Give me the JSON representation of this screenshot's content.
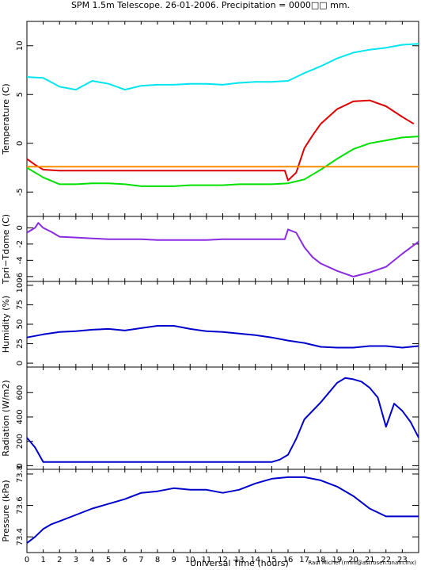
{
  "title": "SPM 1.5m Telescope. 26-01-2006. Precipitation = 0000□□ mm.",
  "credit": "Raul Michel (rmm@astrosen.unam.mx)",
  "colors": {
    "cyan": "#00e5ee",
    "red": "#dd0000",
    "green": "#00e000",
    "orange": "#ff8c00",
    "purple": "#8a2be2",
    "blue": "#0000cc"
  },
  "chart_data": {
    "type": "line",
    "xlabel": "Universal Time (hours)",
    "xlim": [
      0,
      24
    ],
    "xticks": [
      "0",
      "1",
      "2",
      "3",
      "4",
      "5",
      "6",
      "7",
      "8",
      "9",
      "10",
      "11",
      "12",
      "13",
      "14",
      "15",
      "16",
      "17",
      "18",
      "19",
      "20",
      "21",
      "22",
      "23"
    ],
    "panels": [
      {
        "name": "temperature",
        "ylabel": "Temperature (C)",
        "ylim": [
          -7.5,
          12.5
        ],
        "yticks": [
          -5,
          0,
          5,
          10
        ],
        "series": [
          {
            "color": "cyan",
            "points": [
              [
                0,
                6.8
              ],
              [
                1,
                6.7
              ],
              [
                2,
                5.8
              ],
              [
                3,
                5.5
              ],
              [
                4,
                6.4
              ],
              [
                5,
                6.1
              ],
              [
                6,
                5.5
              ],
              [
                7,
                5.9
              ],
              [
                8,
                6.0
              ],
              [
                9,
                6.0
              ],
              [
                10,
                6.1
              ],
              [
                11,
                6.1
              ],
              [
                12,
                6.0
              ],
              [
                13,
                6.2
              ],
              [
                14,
                6.3
              ],
              [
                15,
                6.3
              ],
              [
                16,
                6.4
              ],
              [
                17,
                7.2
              ],
              [
                18,
                7.9
              ],
              [
                19,
                8.7
              ],
              [
                20,
                9.3
              ],
              [
                21,
                9.6
              ],
              [
                22,
                9.8
              ],
              [
                23,
                10.1
              ],
              [
                24,
                10.2
              ]
            ]
          },
          {
            "color": "red",
            "points": [
              [
                0,
                -1.6
              ],
              [
                0.5,
                -2.2
              ],
              [
                1,
                -2.7
              ],
              [
                2,
                -2.8
              ],
              [
                4,
                -2.8
              ],
              [
                6,
                -2.8
              ],
              [
                8,
                -2.8
              ],
              [
                10,
                -2.8
              ],
              [
                12,
                -2.8
              ],
              [
                14,
                -2.8
              ],
              [
                15.8,
                -2.8
              ],
              [
                16,
                -3.8
              ],
              [
                16.5,
                -3.0
              ],
              [
                17,
                -0.5
              ],
              [
                17.5,
                0.8
              ],
              [
                18,
                2.0
              ],
              [
                19,
                3.5
              ],
              [
                20,
                4.3
              ],
              [
                21,
                4.4
              ],
              [
                22,
                3.8
              ],
              [
                23,
                2.7
              ],
              [
                23.7,
                2.0
              ]
            ]
          },
          {
            "color": "green",
            "points": [
              [
                0,
                -2.5
              ],
              [
                1,
                -3.5
              ],
              [
                2,
                -4.2
              ],
              [
                3,
                -4.2
              ],
              [
                4,
                -4.1
              ],
              [
                5,
                -4.1
              ],
              [
                6,
                -4.2
              ],
              [
                7,
                -4.4
              ],
              [
                8,
                -4.4
              ],
              [
                9,
                -4.4
              ],
              [
                10,
                -4.3
              ],
              [
                11,
                -4.3
              ],
              [
                12,
                -4.3
              ],
              [
                13,
                -4.2
              ],
              [
                14,
                -4.2
              ],
              [
                15,
                -4.2
              ],
              [
                16,
                -4.1
              ],
              [
                17,
                -3.7
              ],
              [
                18,
                -2.7
              ],
              [
                19,
                -1.6
              ],
              [
                20,
                -0.6
              ],
              [
                21,
                0.0
              ],
              [
                22,
                0.3
              ],
              [
                23,
                0.6
              ],
              [
                24,
                0.7
              ]
            ]
          },
          {
            "color": "orange",
            "points": [
              [
                0,
                -2.4
              ],
              [
                24,
                -2.4
              ]
            ]
          }
        ]
      },
      {
        "name": "tpri-tdome",
        "ylabel": "Tpri−Tdome (C)",
        "ylim": [
          -6.6,
          1.4
        ],
        "yticks": [
          -6,
          -4,
          -2,
          0
        ],
        "series": [
          {
            "color": "purple",
            "points": [
              [
                0,
                -0.6
              ],
              [
                0.5,
                0.0
              ],
              [
                0.7,
                0.6
              ],
              [
                1,
                0.0
              ],
              [
                1.5,
                -0.5
              ],
              [
                2,
                -1.1
              ],
              [
                3,
                -1.2
              ],
              [
                4,
                -1.3
              ],
              [
                5,
                -1.4
              ],
              [
                6,
                -1.4
              ],
              [
                7,
                -1.4
              ],
              [
                8,
                -1.5
              ],
              [
                9,
                -1.5
              ],
              [
                10,
                -1.5
              ],
              [
                11,
                -1.5
              ],
              [
                12,
                -1.4
              ],
              [
                13,
                -1.4
              ],
              [
                14,
                -1.4
              ],
              [
                15,
                -1.4
              ],
              [
                15.8,
                -1.4
              ],
              [
                16,
                -0.2
              ],
              [
                16.5,
                -0.6
              ],
              [
                17,
                -2.4
              ],
              [
                17.5,
                -3.6
              ],
              [
                18,
                -4.4
              ],
              [
                19,
                -5.3
              ],
              [
                20,
                -6.0
              ],
              [
                21,
                -5.5
              ],
              [
                22,
                -4.8
              ],
              [
                23,
                -3.2
              ],
              [
                24,
                -1.7
              ]
            ]
          }
        ]
      },
      {
        "name": "humidity",
        "ylabel": "Humidity (%)",
        "ylim": [
          -5,
          105
        ],
        "yticks": [
          0,
          25,
          50,
          75,
          100
        ],
        "series": [
          {
            "color": "blue",
            "points": [
              [
                0,
                33
              ],
              [
                1,
                37
              ],
              [
                2,
                40
              ],
              [
                3,
                41
              ],
              [
                4,
                43
              ],
              [
                5,
                44
              ],
              [
                6,
                42
              ],
              [
                7,
                45
              ],
              [
                8,
                48
              ],
              [
                9,
                48
              ],
              [
                10,
                44
              ],
              [
                11,
                41
              ],
              [
                12,
                40
              ],
              [
                13,
                38
              ],
              [
                14,
                36
              ],
              [
                15,
                33
              ],
              [
                16,
                29
              ],
              [
                17,
                26
              ],
              [
                18,
                21
              ],
              [
                19,
                20
              ],
              [
                20,
                20
              ],
              [
                21,
                22
              ],
              [
                22,
                22
              ],
              [
                23,
                20
              ],
              [
                24,
                22
              ]
            ]
          }
        ]
      },
      {
        "name": "radiation",
        "ylabel": "Radiation (W/m2)",
        "ylim": [
          -30,
          810
        ],
        "yticks": [
          0,
          200,
          400,
          600
        ],
        "series": [
          {
            "color": "blue",
            "points": [
              [
                0,
                230
              ],
              [
                0.5,
                150
              ],
              [
                1,
                30
              ],
              [
                2,
                30
              ],
              [
                4,
                30
              ],
              [
                6,
                30
              ],
              [
                8,
                30
              ],
              [
                10,
                30
              ],
              [
                12,
                30
              ],
              [
                14,
                30
              ],
              [
                15,
                30
              ],
              [
                15.5,
                50
              ],
              [
                16,
                90
              ],
              [
                16.5,
                220
              ],
              [
                17,
                380
              ],
              [
                17.5,
                450
              ],
              [
                18,
                520
              ],
              [
                18.5,
                600
              ],
              [
                19,
                680
              ],
              [
                19.5,
                720
              ],
              [
                20,
                710
              ],
              [
                20.5,
                690
              ],
              [
                21,
                640
              ],
              [
                21.5,
                560
              ],
              [
                22,
                320
              ],
              [
                22.5,
                510
              ],
              [
                23,
                450
              ],
              [
                23.5,
                360
              ],
              [
                24,
                230
              ]
            ]
          }
        ]
      },
      {
        "name": "pressure",
        "ylabel": "Pressure (kPa)",
        "ylim": [
          73.3,
          73.83
        ],
        "yticks": [
          73.4,
          73.6,
          73.8
        ],
        "series": [
          {
            "color": "blue",
            "points": [
              [
                0,
                73.36
              ],
              [
                0.5,
                73.4
              ],
              [
                1,
                73.45
              ],
              [
                1.5,
                73.48
              ],
              [
                2,
                73.5
              ],
              [
                3,
                73.54
              ],
              [
                4,
                73.58
              ],
              [
                5,
                73.61
              ],
              [
                6,
                73.64
              ],
              [
                7,
                73.68
              ],
              [
                8,
                73.69
              ],
              [
                9,
                73.71
              ],
              [
                10,
                73.7
              ],
              [
                11,
                73.7
              ],
              [
                12,
                73.68
              ],
              [
                13,
                73.7
              ],
              [
                14,
                73.74
              ],
              [
                15,
                73.77
              ],
              [
                16,
                73.78
              ],
              [
                17,
                73.78
              ],
              [
                18,
                73.76
              ],
              [
                19,
                73.72
              ],
              [
                20,
                73.66
              ],
              [
                21,
                73.58
              ],
              [
                22,
                73.53
              ],
              [
                23,
                73.53
              ],
              [
                24,
                73.53
              ]
            ]
          }
        ]
      }
    ]
  }
}
